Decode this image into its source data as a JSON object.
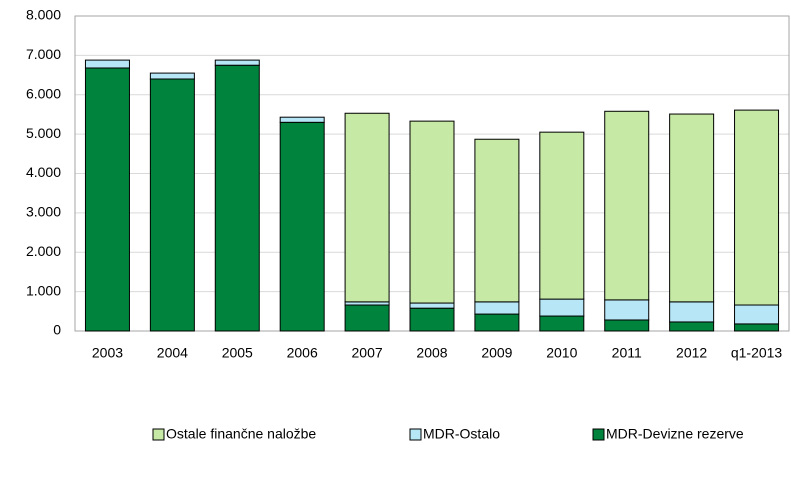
{
  "chart_data": {
    "type": "stacked_bar",
    "categories": [
      "2003",
      "2004",
      "2005",
      "2006",
      "2007",
      "2008",
      "2009",
      "2010",
      "2011",
      "2012",
      "q1-2013"
    ],
    "series": [
      {
        "name": "MDR-Devizne rezerve",
        "color": "#00843d",
        "values": [
          6680,
          6400,
          6750,
          5300,
          660,
          580,
          430,
          380,
          280,
          230,
          180
        ]
      },
      {
        "name": "MDR-Ostalo",
        "color": "#b7e7f7",
        "values": [
          200,
          150,
          130,
          130,
          80,
          130,
          310,
          430,
          510,
          510,
          480
        ]
      },
      {
        "name": "Ostale finančne naložbe",
        "color": "#c6e9a5",
        "values": [
          0,
          0,
          0,
          0,
          4790,
          4620,
          4130,
          4240,
          4790,
          4770,
          4950
        ]
      }
    ],
    "legend_order": [
      2,
      1,
      0
    ],
    "ylim": [
      0,
      8000
    ],
    "yticks": [
      0,
      {
        "value": 1000,
        "label": "1.000"
      },
      {
        "value": 2000,
        "label": "2.000"
      },
      {
        "value": 3000,
        "label": "3.000"
      },
      {
        "value": 4000,
        "label": "4.000"
      },
      {
        "value": 5000,
        "label": "5.000"
      },
      {
        "value": 6000,
        "label": "6.000"
      },
      {
        "value": 7000,
        "label": "7.000"
      },
      {
        "value": 8000,
        "label": "8.000"
      }
    ],
    "grid": true,
    "legend": "bottom"
  }
}
